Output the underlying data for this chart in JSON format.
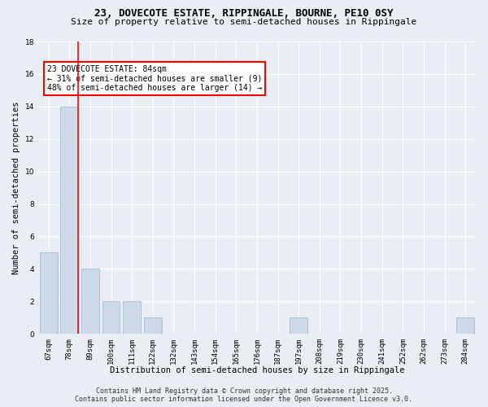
{
  "title": "23, DOVECOTE ESTATE, RIPPINGALE, BOURNE, PE10 0SY",
  "subtitle": "Size of property relative to semi-detached houses in Rippingale",
  "xlabel": "Distribution of semi-detached houses by size in Rippingale",
  "ylabel": "Number of semi-detached properties",
  "categories": [
    "67sqm",
    "78sqm",
    "89sqm",
    "100sqm",
    "111sqm",
    "122sqm",
    "132sqm",
    "143sqm",
    "154sqm",
    "165sqm",
    "176sqm",
    "187sqm",
    "197sqm",
    "208sqm",
    "219sqm",
    "230sqm",
    "241sqm",
    "252sqm",
    "262sqm",
    "273sqm",
    "284sqm"
  ],
  "values": [
    5,
    14,
    4,
    2,
    2,
    1,
    0,
    0,
    0,
    0,
    0,
    0,
    1,
    0,
    0,
    0,
    0,
    0,
    0,
    0,
    1
  ],
  "bar_color": "#ccd9e8",
  "bar_edge_color": "#a0b4c8",
  "redline_bar_index": 1,
  "annotation_text": "23 DOVECOTE ESTATE: 84sqm\n← 31% of semi-detached houses are smaller (9)\n48% of semi-detached houses are larger (14) →",
  "annotation_box_color": "white",
  "annotation_box_edge_color": "red",
  "ylim": [
    0,
    18
  ],
  "yticks": [
    0,
    2,
    4,
    6,
    8,
    10,
    12,
    14,
    16,
    18
  ],
  "footer_line1": "Contains HM Land Registry data © Crown copyright and database right 2025.",
  "footer_line2": "Contains public sector information licensed under the Open Government Licence v3.0.",
  "background_color": "#e8eef4",
  "grid_color": "#ffffff",
  "title_fontsize": 9,
  "subtitle_fontsize": 8,
  "axis_label_fontsize": 7.5,
  "tick_fontsize": 6.5,
  "annotation_fontsize": 7,
  "footer_fontsize": 6
}
